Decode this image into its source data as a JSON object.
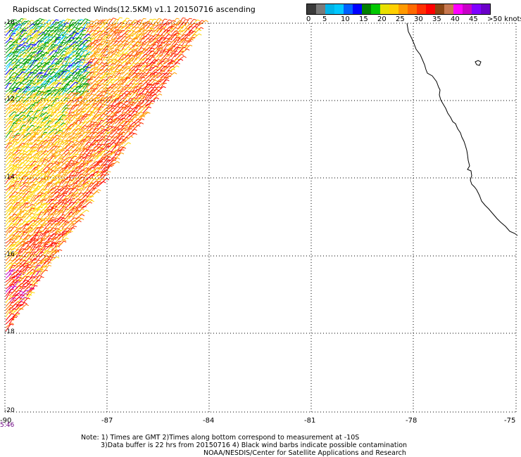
{
  "title": "Rapidscat Corrected Winds(12.5KM) v1.1 20150716 ascending",
  "legend": {
    "colors": [
      "#3a3a3a",
      "#7a7a7a",
      "#00b4e8",
      "#00c8ff",
      "#0060ff",
      "#0000ff",
      "#008000",
      "#00c800",
      "#e8e000",
      "#ffd000",
      "#ff9a00",
      "#ff6a00",
      "#ff3000",
      "#ff0000",
      "#8b4513",
      "#c87850",
      "#ff00ff",
      "#c800c8",
      "#8000ff",
      "#6a00c8"
    ],
    "labels": [
      "0",
      "5",
      "10",
      "15",
      "20",
      "25",
      "30",
      "35",
      "40",
      "45",
      ">50 knots"
    ]
  },
  "map": {
    "lat_labels": [
      "-10",
      "-12",
      "-14",
      "-16",
      "-18",
      "-20"
    ],
    "lon_labels": [
      "-90",
      "-87",
      "-84",
      "-81",
      "-78",
      "-75"
    ],
    "time_label": "5:46"
  },
  "notes": {
    "line1": "Note: 1) Times are GMT 2)Times along bottom correspond to measurement at -10S",
    "line2": "3)Data buffer is 22 hrs from 20150716 4) Black wind barbs indicate possible contamination",
    "line3": "NOAA/NESDIS/Center for Satellite Applications and Research"
  }
}
